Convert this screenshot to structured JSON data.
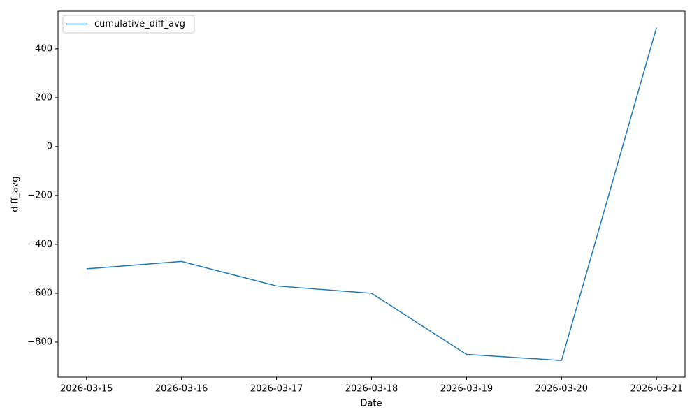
{
  "chart_data": {
    "type": "line",
    "x": [
      "2026-03-15",
      "2026-03-16",
      "2026-03-17",
      "2026-03-18",
      "2026-03-19",
      "2026-03-20",
      "2026-03-21"
    ],
    "series": [
      {
        "name": "cumulative_diff_avg",
        "color": "#1f77b4",
        "values": [
          -500,
          -470,
          -570,
          -600,
          -850,
          -875,
          487
        ]
      }
    ],
    "xlabel": "Date",
    "ylabel": "diff_avg",
    "ylim": [
      -943,
      554
    ],
    "yticks": [
      {
        "value": -800,
        "label": "−800"
      },
      {
        "value": -600,
        "label": "−600"
      },
      {
        "value": -400,
        "label": "−400"
      },
      {
        "value": -200,
        "label": "−200"
      },
      0,
      200,
      400
    ],
    "legend": "upper left"
  }
}
